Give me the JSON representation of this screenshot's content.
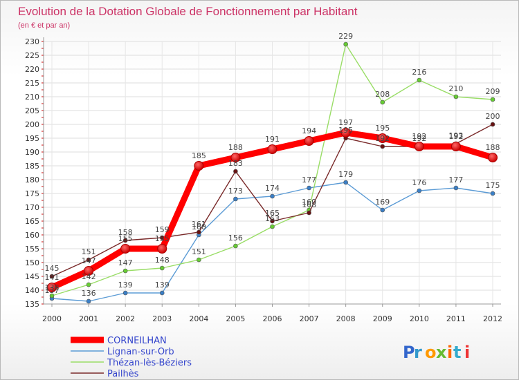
{
  "chart_data": {
    "type": "line",
    "title": "Evolution de la Dotation Globale de Fonctionnement par Habitant",
    "subtitle": "(en € et par an)",
    "xlabel": "",
    "ylabel": "",
    "x": [
      2000,
      2001,
      2002,
      2003,
      2004,
      2005,
      2006,
      2007,
      2008,
      2009,
      2010,
      2011,
      2012
    ],
    "ylim": [
      135,
      230
    ],
    "yticks": [
      135,
      140,
      145,
      150,
      155,
      160,
      165,
      170,
      175,
      180,
      185,
      190,
      195,
      200,
      205,
      210,
      215,
      220,
      225,
      230
    ],
    "grid": true,
    "legend": "bottom-left",
    "series": [
      {
        "name": "Lignan-sur-Orb",
        "color": "#5b9bd5",
        "dot": "#3a7fc7",
        "values": [
          137,
          136,
          139,
          139,
          160,
          173,
          174,
          177,
          179,
          169,
          176,
          177,
          175
        ]
      },
      {
        "name": "Thézan-lès-Béziers",
        "color": "#99dd66",
        "dot": "#66cc33",
        "values": [
          138,
          142,
          147,
          148,
          151,
          156,
          163,
          169,
          229,
          208,
          216,
          210,
          209
        ]
      },
      {
        "name": "Pailhès",
        "color": "#7a2a2a",
        "dot": "#661111",
        "values": [
          145,
          151,
          158,
          159,
          161,
          183,
          165,
          168,
          195,
          192,
          192,
          193,
          200
        ]
      },
      {
        "name": "CORNEILHAN",
        "color": "#ff0000",
        "dot": "#ee0000",
        "values": [
          141,
          147,
          155,
          155,
          185,
          188,
          191,
          194,
          197,
          195,
          192,
          192,
          188
        ]
      }
    ],
    "legend_order": [
      "CORNEILHAN",
      "Lignan-sur-Orb",
      "Thézan-lès-Béziers",
      "Pailhès"
    ],
    "bold_series": "CORNEILHAN"
  },
  "logo": {
    "text": "Proxiti"
  }
}
